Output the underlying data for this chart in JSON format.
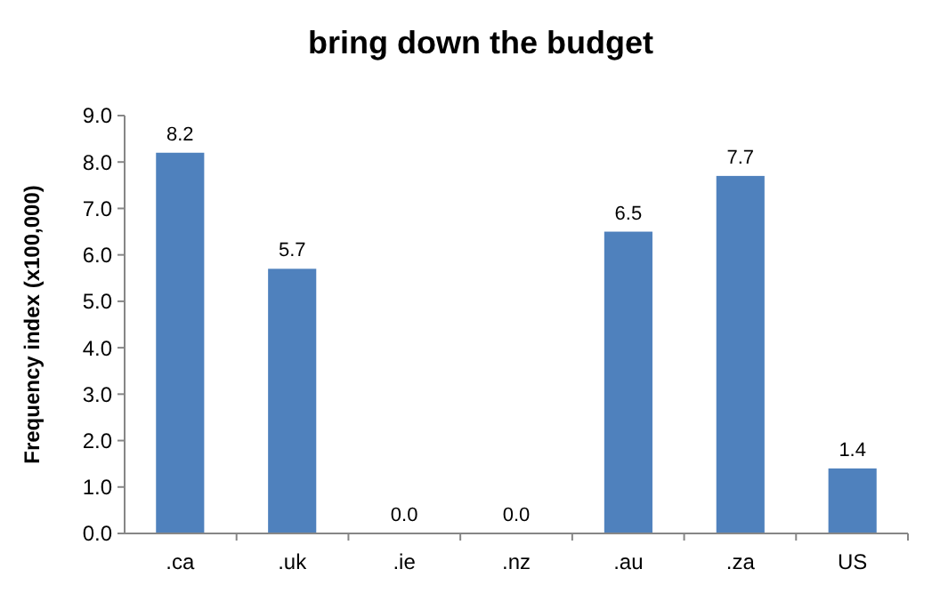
{
  "chart_data": {
    "type": "bar",
    "title": "bring down the budget",
    "ylabel": "Frequency index (x100,000)",
    "categories": [
      ".ca",
      ".uk",
      ".ie",
      ".nz",
      ".au",
      ".za",
      "US"
    ],
    "values": [
      8.2,
      5.7,
      0,
      0,
      6.5,
      7.7,
      1.4
    ],
    "value_labels": [
      "8.2",
      "5.7",
      "0.0",
      "0.0",
      "6.5",
      "7.7",
      "1.4"
    ],
    "color": "#4f81bd",
    "ylim": [
      0,
      9
    ],
    "yticks": [
      {
        "value": 0,
        "label": "0.0"
      },
      {
        "value": 1,
        "label": "1.0"
      },
      {
        "value": 2,
        "label": "2.0"
      },
      {
        "value": 3,
        "label": "3.0"
      },
      {
        "value": 4,
        "label": "4.0"
      },
      {
        "value": 5,
        "label": "5.0"
      },
      {
        "value": 6,
        "label": "6.0"
      },
      {
        "value": 7,
        "label": "7.0"
      },
      {
        "value": 8,
        "label": "8.0"
      },
      {
        "value": 9,
        "label": "9.0"
      }
    ],
    "grid": false
  }
}
